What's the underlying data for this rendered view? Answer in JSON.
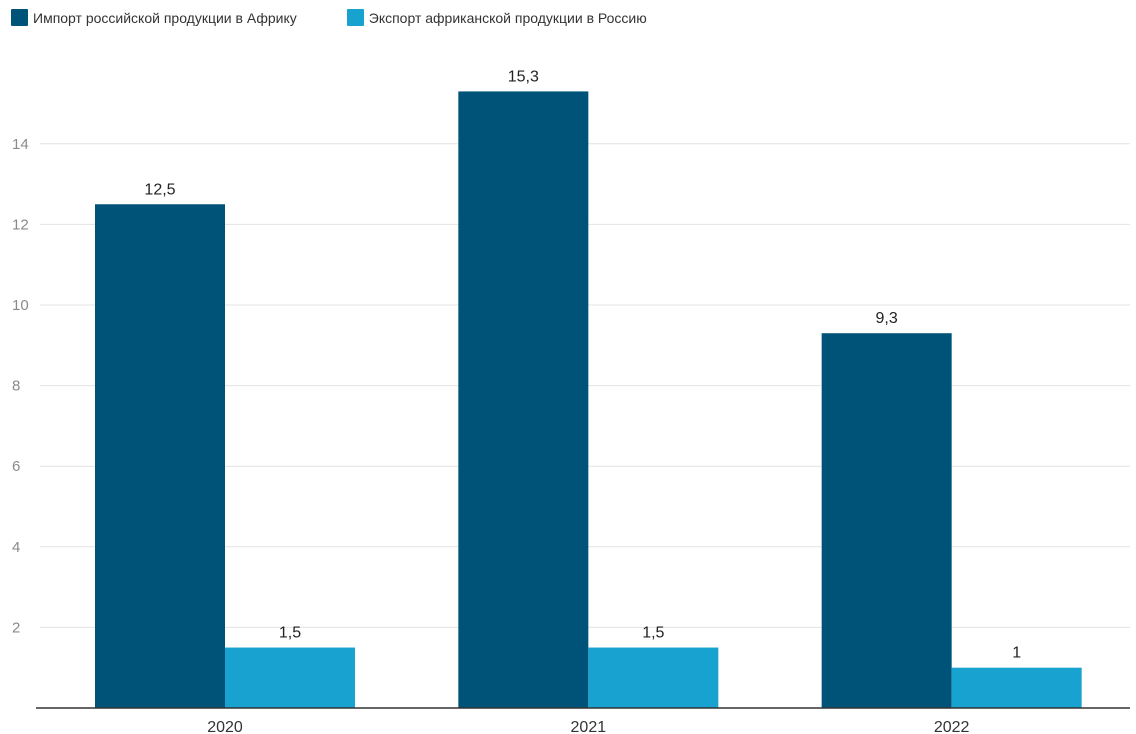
{
  "chart_data": {
    "type": "bar",
    "categories": [
      "2020",
      "2021",
      "2022"
    ],
    "series": [
      {
        "name": "Импорт российской продукции в Африку",
        "color": "#005378",
        "values": [
          12.5,
          15.3,
          9.3
        ],
        "labels": [
          "12,5",
          "15,3",
          "9,3"
        ]
      },
      {
        "name": "Экспорт африканской продукции в Россию",
        "color": "#18a2cf",
        "values": [
          1.5,
          1.5,
          1
        ],
        "labels": [
          "1,5",
          "1,5",
          "1"
        ]
      }
    ],
    "yticks": [
      2,
      4,
      6,
      8,
      10,
      12,
      14
    ],
    "ylim": [
      0,
      16
    ],
    "grid": true,
    "legend": "top-left",
    "title": "",
    "xlabel": "",
    "ylabel": ""
  }
}
